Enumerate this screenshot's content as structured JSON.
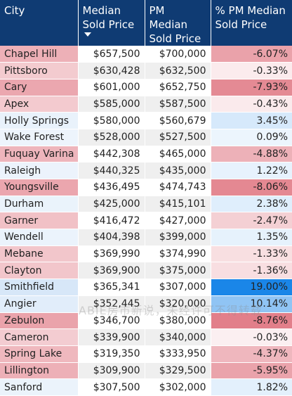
{
  "headers": {
    "city": "City",
    "median": "Median Sold Price",
    "pm_median": "PM Median Sold Price",
    "pct": "% PM Median Sold Price"
  },
  "sort": {
    "column": "median",
    "direction": "descending",
    "icon": "sort-down-arrow-icon"
  },
  "colors": {
    "header_bg": "#0f3b73",
    "negative_strong": "#e27f8a",
    "negative_light": "#fbe6e8",
    "positive_light": "#e8f1fb",
    "positive_strong": "#1a86e8"
  },
  "rows": [
    {
      "city": "Chapel Hill",
      "median": "$657,500",
      "pm_median": "$700,000",
      "pct": "-6.07%",
      "pct_value": -6.07
    },
    {
      "city": "Pittsboro",
      "median": "$630,428",
      "pm_median": "$632,500",
      "pct": "-0.33%",
      "pct_value": -0.33
    },
    {
      "city": "Cary",
      "median": "$601,000",
      "pm_median": "$652,750",
      "pct": "-7.93%",
      "pct_value": -7.93
    },
    {
      "city": "Apex",
      "median": "$585,000",
      "pm_median": "$587,500",
      "pct": "-0.43%",
      "pct_value": -0.43
    },
    {
      "city": "Holly Springs",
      "median": "$580,000",
      "pm_median": "$560,679",
      "pct": "3.45%",
      "pct_value": 3.45
    },
    {
      "city": "Wake Forest",
      "median": "$528,000",
      "pm_median": "$527,500",
      "pct": "0.09%",
      "pct_value": 0.09
    },
    {
      "city": "Fuquay Varina",
      "median": "$442,308",
      "pm_median": "$465,000",
      "pct": "-4.88%",
      "pct_value": -4.88
    },
    {
      "city": "Raleigh",
      "median": "$440,325",
      "pm_median": "$435,000",
      "pct": "1.22%",
      "pct_value": 1.22
    },
    {
      "city": "Youngsville",
      "median": "$436,495",
      "pm_median": "$474,743",
      "pct": "-8.06%",
      "pct_value": -8.06
    },
    {
      "city": "Durham",
      "median": "$425,000",
      "pm_median": "$415,101",
      "pct": "2.38%",
      "pct_value": 2.38
    },
    {
      "city": "Garner",
      "median": "$416,472",
      "pm_median": "$427,000",
      "pct": "-2.47%",
      "pct_value": -2.47
    },
    {
      "city": "Wendell",
      "median": "$404,398",
      "pm_median": "$399,000",
      "pct": "1.35%",
      "pct_value": 1.35
    },
    {
      "city": "Mebane",
      "median": "$369,990",
      "pm_median": "$374,990",
      "pct": "-1.33%",
      "pct_value": -1.33
    },
    {
      "city": "Clayton",
      "median": "$369,900",
      "pm_median": "$375,000",
      "pct": "-1.36%",
      "pct_value": -1.36
    },
    {
      "city": "Smithfield",
      "median": "$365,341",
      "pm_median": "$307,000",
      "pct": "19.00%",
      "pct_value": 19.0
    },
    {
      "city": "Angier",
      "median": "$352,445",
      "pm_median": "$320,000",
      "pct": "10.14%",
      "pct_value": 10.14
    },
    {
      "city": "Zebulon",
      "median": "$346,700",
      "pm_median": "$380,000",
      "pct": "-8.76%",
      "pct_value": -8.76
    },
    {
      "city": "Cameron",
      "median": "$339,900",
      "pm_median": "$340,000",
      "pct": "-0.03%",
      "pct_value": -0.03
    },
    {
      "city": "Spring Lake",
      "median": "$319,350",
      "pm_median": "$333,950",
      "pct": "-4.37%",
      "pct_value": -4.37
    },
    {
      "city": "Lillington",
      "median": "$309,900",
      "pm_median": "$329,500",
      "pct": "-5.95%",
      "pct_value": -5.95
    },
    {
      "city": "Sanford",
      "median": "$307,500",
      "pm_median": "$302,000",
      "pct": "1.82%",
      "pct_value": 1.82
    }
  ],
  "watermark": "ABIE房市新说，未经许可不得转载"
}
